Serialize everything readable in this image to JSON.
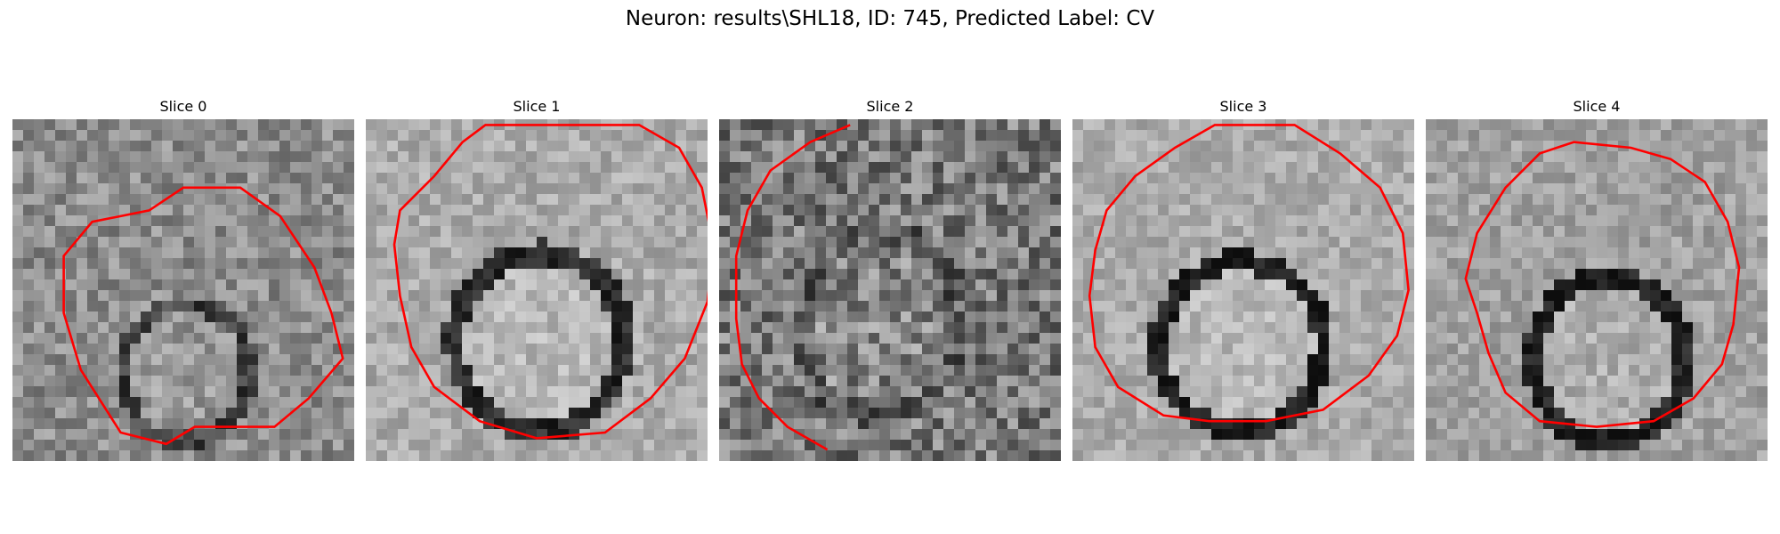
{
  "figure": {
    "title": "Neuron: results\\SHL18, ID: 745, Predicted Label: CV"
  },
  "panels": [
    {
      "title": "Slice 0",
      "image": "grayscale-microscopy-slice",
      "contour_color": "#ff0000"
    },
    {
      "title": "Slice 1",
      "image": "grayscale-microscopy-slice",
      "contour_color": "#ff0000"
    },
    {
      "title": "Slice 2",
      "image": "grayscale-microscopy-slice",
      "contour_color": "#ff0000"
    },
    {
      "title": "Slice 3",
      "image": "grayscale-microscopy-slice",
      "contour_color": "#ff0000"
    },
    {
      "title": "Slice 4",
      "image": "grayscale-microscopy-slice",
      "contour_color": "#ff0000"
    }
  ]
}
